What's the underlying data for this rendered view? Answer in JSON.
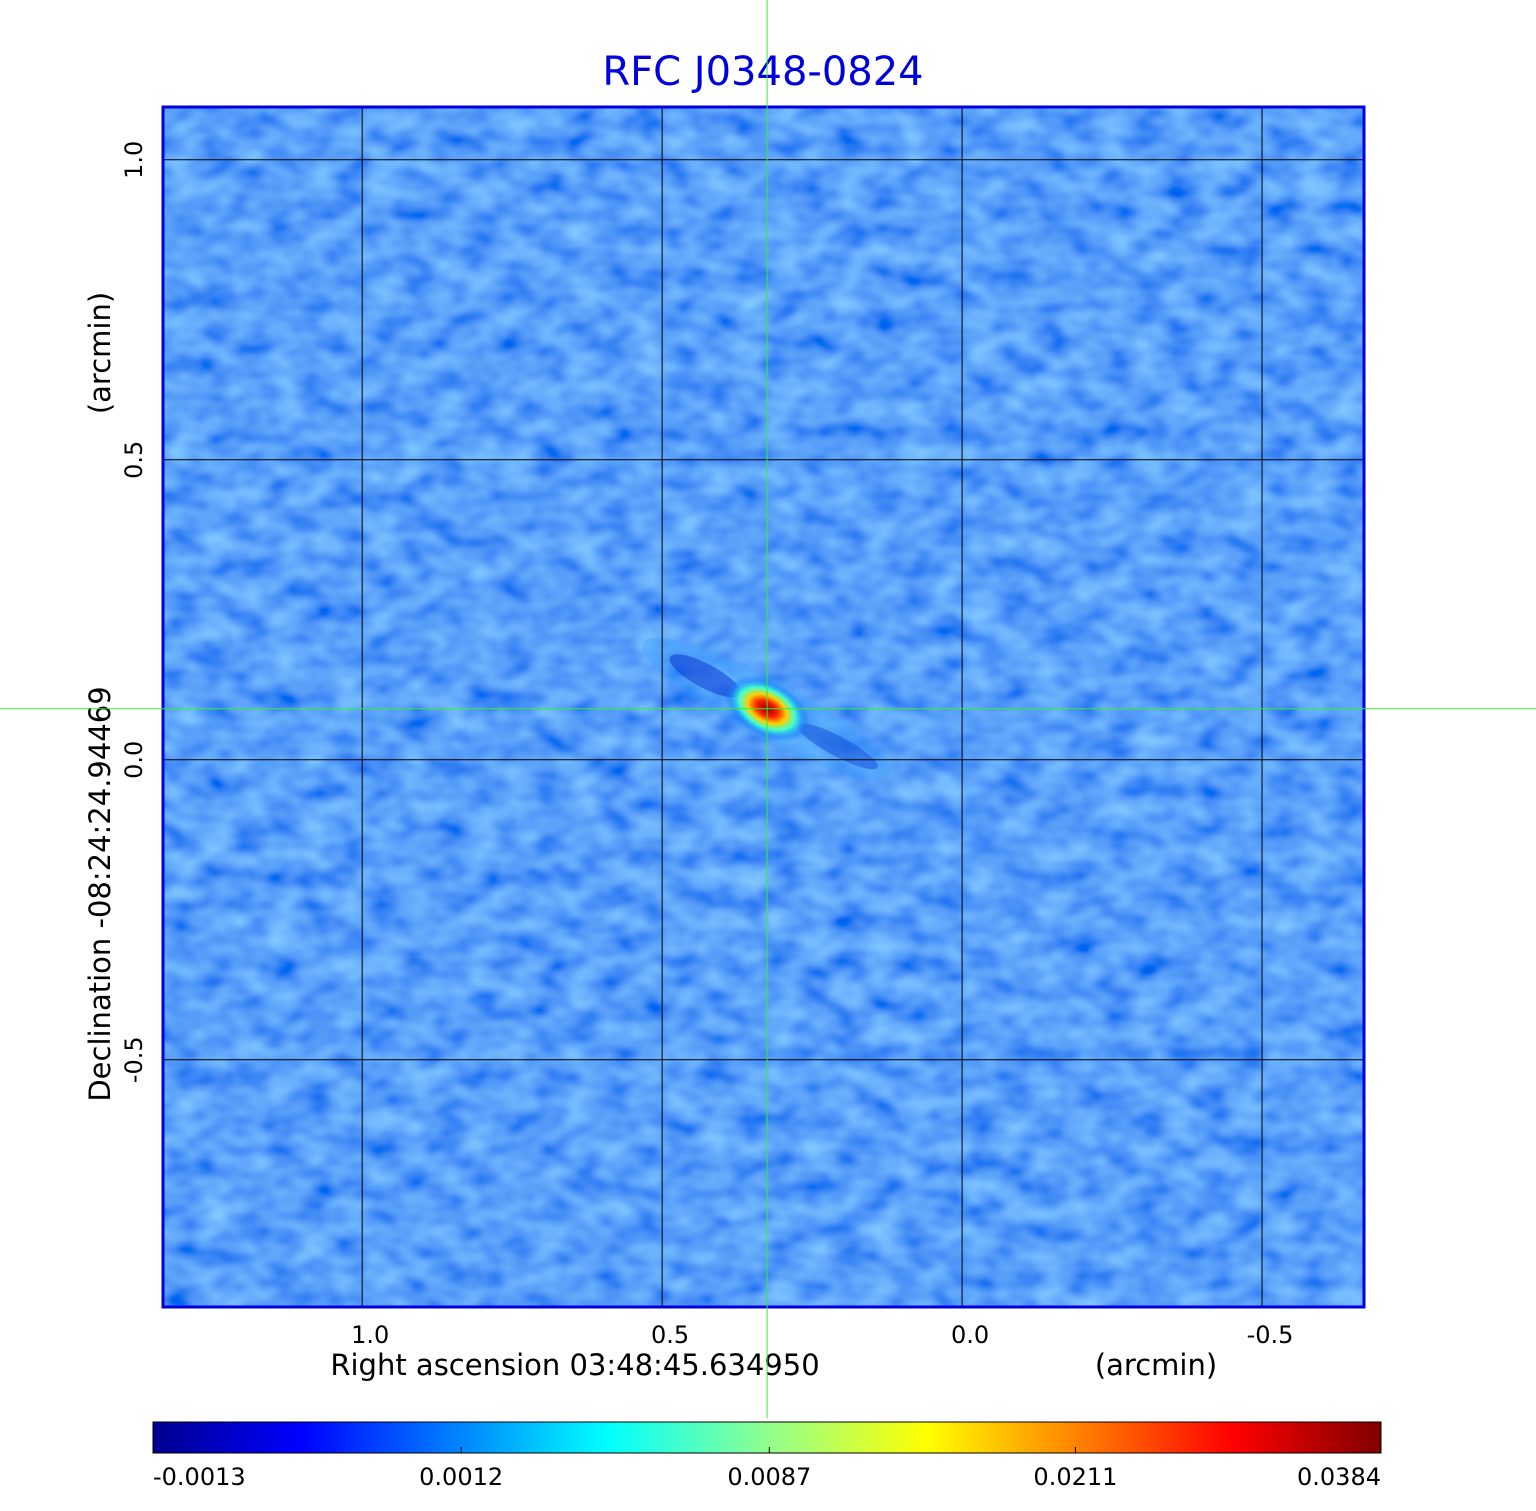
{
  "chart_data": {
    "type": "image",
    "title": "RFC J0348-0824",
    "xlabel": "Right ascension  03:48:45.634950",
    "xunit": "(arcmin)",
    "ylabel": "Declination  -08:24:24.94469",
    "yunit": "(arcmin)",
    "xlim": [
      1.332,
      -0.67
    ],
    "ylim": [
      -0.912,
      1.088
    ],
    "xticks": [
      {
        "value": 1,
        "label": "1.0"
      },
      0.5,
      {
        "value": 0,
        "label": "0.0"
      },
      -0.5
    ],
    "yticks": [
      -0.5,
      {
        "value": 0,
        "label": "0.0"
      },
      0.5,
      {
        "value": 1,
        "label": "1.0"
      }
    ],
    "grid": true,
    "crosshair": {
      "x": 0.325,
      "y": 0.085
    },
    "colorbar": {
      "lim": [
        -0.0013,
        0.0384
      ],
      "scale": "sqrt",
      "ticks": [
        -0.0013,
        0.0012,
        0.0087,
        0.0211,
        0.0384
      ]
    }
  }
}
